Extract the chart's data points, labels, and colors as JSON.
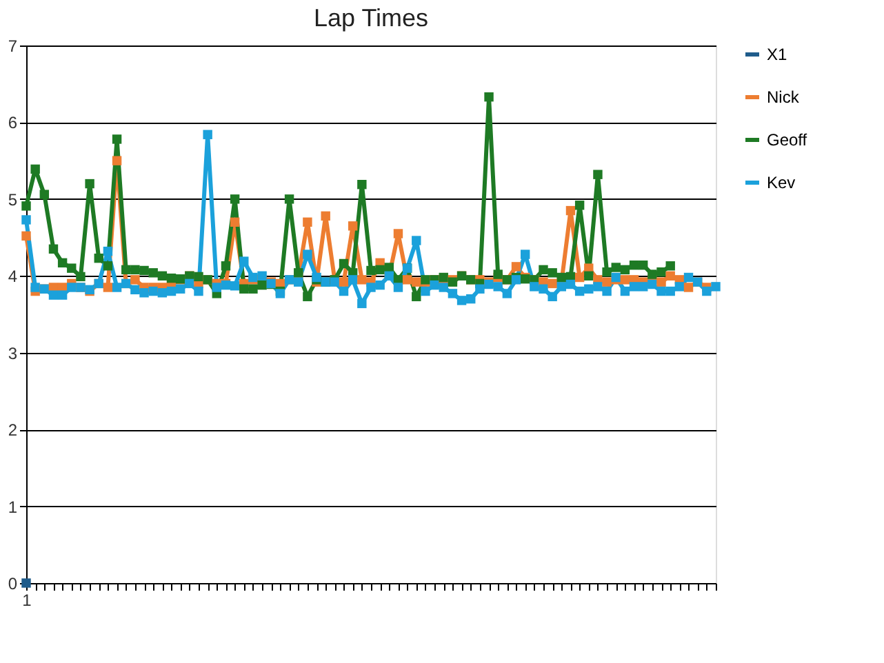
{
  "chart_data": {
    "type": "line",
    "title": "Lap Times",
    "categories": [
      "1",
      null,
      null,
      null,
      null,
      null,
      null,
      null,
      null,
      null,
      null,
      null,
      null,
      null,
      null,
      null,
      null,
      null,
      null,
      null,
      null,
      null,
      null,
      null,
      null,
      null,
      null,
      null,
      null,
      null,
      null,
      null,
      null,
      null,
      null,
      null,
      null,
      null,
      null,
      null,
      null,
      null,
      null,
      null,
      null,
      null,
      null,
      null,
      null,
      null,
      null,
      null,
      null,
      null,
      null,
      null,
      null,
      null,
      null,
      null,
      null,
      null,
      null,
      null,
      null,
      null,
      null,
      null,
      null,
      null,
      null,
      null,
      null,
      null,
      null,
      null,
      null
    ],
    "series": [
      {
        "name": "X1",
        "color": "#1f5c8b",
        "values": [
          0,
          null,
          null,
          null,
          null,
          null,
          null,
          null,
          null,
          null,
          null,
          null,
          null,
          null,
          null,
          null,
          null,
          null,
          null,
          null,
          null,
          null,
          null,
          null,
          null,
          null,
          null,
          null,
          null,
          null,
          null,
          null,
          null,
          null,
          null,
          null,
          null,
          null,
          null,
          null,
          null,
          null,
          null,
          null,
          null,
          null,
          null,
          null,
          null,
          null,
          null,
          null,
          null,
          null,
          null,
          null,
          null,
          null,
          null,
          null,
          null,
          null,
          null,
          null,
          null,
          null,
          null,
          null,
          null,
          null,
          null,
          null,
          null,
          null,
          null,
          null,
          null
        ]
      },
      {
        "name": "Nick",
        "color": "#ed7d31",
        "values": [
          4.52,
          3.8,
          3.83,
          3.85,
          3.85,
          3.9,
          3.85,
          3.8,
          3.9,
          3.85,
          5.5,
          3.9,
          3.95,
          3.85,
          3.85,
          3.85,
          3.9,
          3.95,
          4.0,
          3.9,
          3.95,
          3.9,
          3.9,
          4.7,
          3.9,
          3.95,
          3.95,
          3.92,
          3.9,
          3.95,
          4.0,
          4.7,
          3.92,
          4.78,
          3.95,
          3.92,
          4.65,
          3.95,
          3.92,
          4.17,
          4.0,
          4.55,
          3.95,
          3.92,
          3.92,
          3.95,
          3.95,
          3.95,
          4.0,
          3.95,
          3.95,
          3.92,
          3.98,
          3.95,
          4.12,
          3.98,
          3.95,
          3.92,
          3.9,
          3.92,
          4.85,
          3.98,
          4.1,
          3.95,
          3.92,
          3.95,
          3.95,
          3.95,
          3.92,
          3.95,
          3.92,
          4.0,
          3.95,
          3.85,
          3.92,
          3.85,
          null
        ]
      },
      {
        "name": "Geoff",
        "color": "#1e7a24",
        "values": [
          4.91,
          5.39,
          5.06,
          4.35,
          4.17,
          4.1,
          3.99,
          5.2,
          4.23,
          4.13,
          5.78,
          4.08,
          4.08,
          4.07,
          4.04,
          4.0,
          3.97,
          3.96,
          4.0,
          3.99,
          3.95,
          3.77,
          4.13,
          5.0,
          3.83,
          3.83,
          3.88,
          3.89,
          3.8,
          5.0,
          4.04,
          3.73,
          3.95,
          3.92,
          3.95,
          4.16,
          4.04,
          5.19,
          4.07,
          4.08,
          4.11,
          3.95,
          4.1,
          3.73,
          3.95,
          3.95,
          3.98,
          3.92,
          4.0,
          3.95,
          3.9,
          6.33,
          4.02,
          3.95,
          3.98,
          3.96,
          3.95,
          4.08,
          4.04,
          3.98,
          3.99,
          4.92,
          4.0,
          5.32,
          4.05,
          4.11,
          4.08,
          4.14,
          4.14,
          4.02,
          4.05,
          4.13,
          null,
          null,
          null,
          null,
          null
        ]
      },
      {
        "name": "Kev",
        "color": "#1ba1db",
        "values": [
          4.73,
          3.85,
          3.83,
          3.75,
          3.75,
          3.85,
          3.85,
          3.82,
          3.9,
          4.32,
          3.85,
          3.9,
          3.82,
          3.78,
          3.8,
          3.78,
          3.8,
          3.83,
          3.9,
          3.8,
          5.84,
          3.85,
          3.88,
          3.87,
          4.19,
          3.98,
          4.0,
          3.9,
          3.77,
          3.95,
          3.92,
          4.28,
          3.98,
          3.92,
          3.92,
          3.8,
          3.95,
          3.64,
          3.85,
          3.88,
          4.0,
          3.85,
          4.1,
          4.46,
          3.8,
          3.88,
          3.85,
          3.77,
          3.68,
          3.7,
          3.83,
          3.89,
          3.86,
          3.77,
          3.95,
          4.28,
          3.86,
          3.83,
          3.73,
          3.86,
          3.89,
          3.8,
          3.83,
          3.86,
          3.8,
          3.98,
          3.8,
          3.86,
          3.86,
          3.89,
          3.8,
          3.8,
          3.86,
          3.98,
          3.92,
          3.8,
          3.86
        ]
      }
    ],
    "ylim": [
      0,
      7
    ],
    "yticks": [
      0,
      1,
      2,
      3,
      4,
      5,
      6,
      7
    ],
    "grid": "y",
    "legend": "right",
    "marker": "square",
    "line_style": "solid"
  }
}
